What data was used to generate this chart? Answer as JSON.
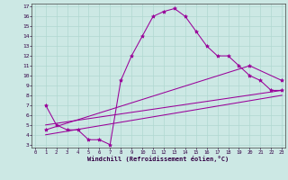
{
  "xlabel": "Windchill (Refroidissement éolien,°C)",
  "background_color": "#cce8e4",
  "line_color": "#990099",
  "xlim": [
    0,
    23
  ],
  "ylim": [
    3,
    17
  ],
  "xticks": [
    0,
    1,
    2,
    3,
    4,
    5,
    6,
    7,
    8,
    9,
    10,
    11,
    12,
    13,
    14,
    15,
    16,
    17,
    18,
    19,
    20,
    21,
    22,
    23
  ],
  "yticks": [
    3,
    4,
    5,
    6,
    7,
    8,
    9,
    10,
    11,
    12,
    13,
    14,
    15,
    16,
    17
  ],
  "grid_color": "#b0d8d0",
  "series": [
    {
      "x": [
        1,
        2,
        3,
        4,
        5,
        6,
        7,
        8,
        9,
        10,
        11,
        12,
        13,
        14,
        15,
        16,
        17,
        18,
        19,
        20,
        21,
        22,
        23
      ],
      "y": [
        7.0,
        5.0,
        4.5,
        4.5,
        3.5,
        3.5,
        3.0,
        9.5,
        12.0,
        14.0,
        16.0,
        16.5,
        16.8,
        16.0,
        14.5,
        13.0,
        12.0,
        12.0,
        11.0,
        10.0,
        9.5,
        8.5,
        8.5
      ],
      "marker": "*",
      "linestyle": "-",
      "markersize": 3.0
    },
    {
      "x": [
        1,
        23
      ],
      "y": [
        4.0,
        8.0
      ],
      "marker": null,
      "linestyle": "-",
      "markersize": 0
    },
    {
      "x": [
        1,
        23
      ],
      "y": [
        5.0,
        8.5
      ],
      "marker": null,
      "linestyle": "-",
      "markersize": 0
    },
    {
      "x": [
        1,
        20,
        23
      ],
      "y": [
        4.5,
        11.0,
        9.5
      ],
      "marker": "*",
      "linestyle": "-",
      "markersize": 3.0
    }
  ]
}
